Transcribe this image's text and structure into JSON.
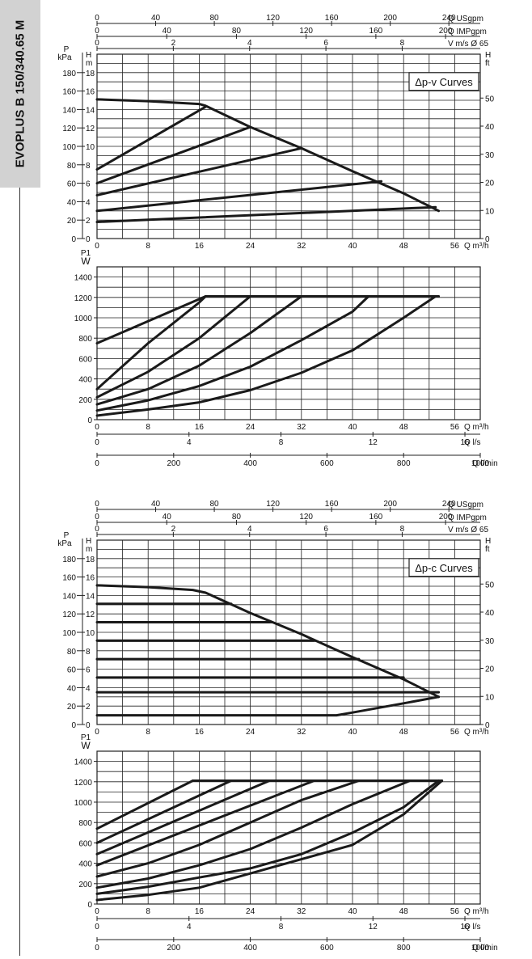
{
  "side_title": "EVOPLUS B 150/340.65 M",
  "colors": {
    "grid": "#222222",
    "curve": "#1a1a1a",
    "side_tab": "#d2d2d2"
  },
  "chart_data": [
    {
      "type": "line",
      "title": "Δp-v Curves",
      "x": {
        "label": "Q m³/h",
        "range": [
          0,
          60
        ],
        "ticks": [
          0,
          8,
          16,
          24,
          32,
          40,
          48,
          56
        ]
      },
      "y": {
        "label": "H m",
        "range": [
          0,
          20
        ],
        "ticks": [
          0,
          2,
          4,
          6,
          8,
          10,
          12,
          14,
          16,
          18
        ]
      },
      "y_secondary": [
        {
          "label": "P kPa",
          "ticks": [
            0,
            20,
            40,
            60,
            80,
            100,
            120,
            140,
            160,
            180
          ]
        },
        {
          "label": "H ft",
          "ticks": [
            0,
            10,
            20,
            30,
            40,
            50
          ]
        }
      ],
      "x_secondary": [
        {
          "label": "Q USgpm",
          "ticks": [
            0,
            40,
            80,
            120,
            160,
            200,
            240
          ]
        },
        {
          "label": "Q IMPgpm",
          "ticks": [
            0,
            40,
            80,
            120,
            160,
            200
          ]
        },
        {
          "label": "V m/s Ø 65",
          "ticks": [
            0,
            2,
            4,
            6,
            8
          ]
        }
      ],
      "series": [
        {
          "values": [
            [
              0,
              15.1
            ],
            [
              8,
              14.9
            ],
            [
              16,
              14.6
            ],
            [
              17,
              14.4
            ],
            [
              24,
              12.1
            ],
            [
              32,
              9.8
            ],
            [
              40,
              7.3
            ],
            [
              48,
              4.9
            ],
            [
              53.5,
              3.0
            ]
          ]
        },
        {
          "values": [
            [
              0,
              7.5
            ],
            [
              17,
              14.3
            ]
          ]
        },
        {
          "values": [
            [
              0,
              6.0
            ],
            [
              24,
              12.1
            ]
          ]
        },
        {
          "values": [
            [
              0,
              4.7
            ],
            [
              32,
              9.8
            ]
          ]
        },
        {
          "values": [
            [
              0,
              3.0
            ],
            [
              44.5,
              6.2
            ]
          ]
        },
        {
          "values": [
            [
              0,
              1.8
            ],
            [
              53,
              3.4
            ]
          ]
        }
      ]
    },
    {
      "type": "line",
      "x": {
        "label": "Q m³/h",
        "range": [
          0,
          60
        ],
        "ticks": [
          0,
          8,
          16,
          24,
          32,
          40,
          48,
          56
        ]
      },
      "y": {
        "label": "P1 W",
        "range": [
          0,
          1500
        ],
        "ticks": [
          0,
          200,
          400,
          600,
          800,
          1000,
          1200,
          1400
        ]
      },
      "x_secondary": [
        {
          "label": "Q l/s",
          "ticks": [
            0,
            4,
            8,
            12,
            16
          ]
        },
        {
          "label": "Q l/min",
          "ticks": [
            0,
            200,
            400,
            600,
            800,
            1000
          ]
        }
      ],
      "series": [
        {
          "values": [
            [
              17,
              1210
            ],
            [
              53.5,
              1210
            ]
          ]
        },
        {
          "values": [
            [
              0,
              750
            ],
            [
              17,
              1210
            ]
          ]
        },
        {
          "values": [
            [
              0,
              300
            ],
            [
              8,
              750
            ],
            [
              16,
              1150
            ],
            [
              17,
              1210
            ]
          ]
        },
        {
          "values": [
            [
              0,
              220
            ],
            [
              8,
              470
            ],
            [
              16,
              800
            ],
            [
              24,
              1210
            ]
          ]
        },
        {
          "values": [
            [
              0,
              150
            ],
            [
              8,
              300
            ],
            [
              16,
              530
            ],
            [
              24,
              850
            ],
            [
              32,
              1210
            ]
          ]
        },
        {
          "values": [
            [
              0,
              90
            ],
            [
              8,
              190
            ],
            [
              16,
              330
            ],
            [
              24,
              520
            ],
            [
              32,
              780
            ],
            [
              40,
              1060
            ],
            [
              42.5,
              1210
            ]
          ]
        },
        {
          "values": [
            [
              0,
              40
            ],
            [
              8,
              100
            ],
            [
              16,
              170
            ],
            [
              24,
              290
            ],
            [
              32,
              460
            ],
            [
              40,
              680
            ],
            [
              48,
              1000
            ],
            [
              53,
              1210
            ]
          ]
        }
      ]
    },
    {
      "type": "line",
      "title": "Δp-c Curves",
      "x": {
        "label": "Q m³/h",
        "range": [
          0,
          60
        ],
        "ticks": [
          0,
          8,
          16,
          24,
          32,
          40,
          48,
          56
        ]
      },
      "y": {
        "label": "H m",
        "range": [
          0,
          20
        ],
        "ticks": [
          0,
          2,
          4,
          6,
          8,
          10,
          12,
          14,
          16,
          18
        ]
      },
      "y_secondary": [
        {
          "label": "P kPa",
          "ticks": [
            0,
            20,
            40,
            60,
            80,
            100,
            120,
            140,
            160,
            180
          ]
        },
        {
          "label": "H ft",
          "ticks": [
            0,
            10,
            20,
            30,
            40,
            50
          ]
        }
      ],
      "x_secondary": [
        {
          "label": "Q USgpm",
          "ticks": [
            0,
            40,
            80,
            120,
            160,
            200,
            240
          ]
        },
        {
          "label": "Q IMPgpm",
          "ticks": [
            0,
            40,
            80,
            120,
            160,
            200
          ]
        },
        {
          "label": "V m/s Ø 65",
          "ticks": [
            0,
            2,
            4,
            6,
            8
          ]
        }
      ],
      "series": [
        {
          "values": [
            [
              0,
              15.1
            ],
            [
              8,
              14.9
            ],
            [
              15,
              14.6
            ],
            [
              17,
              14.3
            ],
            [
              24,
              12.1
            ],
            [
              32,
              9.8
            ],
            [
              40,
              7.3
            ],
            [
              48,
              4.9
            ],
            [
              53.5,
              3.0
            ]
          ]
        },
        {
          "values": [
            [
              0,
              13.1
            ],
            [
              21,
              13.1
            ]
          ]
        },
        {
          "values": [
            [
              0,
              11.1
            ],
            [
              27,
              11.1
            ]
          ]
        },
        {
          "values": [
            [
              0,
              9.1
            ],
            [
              34,
              9.1
            ]
          ]
        },
        {
          "values": [
            [
              0,
              7.1
            ],
            [
              41,
              7.1
            ]
          ]
        },
        {
          "values": [
            [
              0,
              5.1
            ],
            [
              48,
              5.1
            ]
          ]
        },
        {
          "values": [
            [
              0,
              3.5
            ],
            [
              53.5,
              3.5
            ]
          ]
        },
        {
          "values": [
            [
              0,
              1.0
            ],
            [
              37.5,
              1.0
            ],
            [
              40,
              1.3
            ],
            [
              48,
              2.3
            ],
            [
              53.5,
              3.0
            ]
          ]
        }
      ]
    },
    {
      "type": "line",
      "x": {
        "label": "Q m³/h",
        "range": [
          0,
          60
        ],
        "ticks": [
          0,
          8,
          16,
          24,
          32,
          40,
          48,
          56
        ]
      },
      "y": {
        "label": "P1 W",
        "range": [
          0,
          1500
        ],
        "ticks": [
          0,
          200,
          400,
          600,
          800,
          1000,
          1200,
          1400
        ]
      },
      "x_secondary": [
        {
          "label": "Q l/s",
          "ticks": [
            0,
            4,
            8,
            12,
            16
          ]
        },
        {
          "label": "Q l/min",
          "ticks": [
            0,
            200,
            400,
            600,
            800,
            1000
          ]
        }
      ],
      "series": [
        {
          "values": [
            [
              15,
              1210
            ],
            [
              54,
              1210
            ]
          ]
        },
        {
          "values": [
            [
              0,
              740
            ],
            [
              15,
              1210
            ]
          ]
        },
        {
          "values": [
            [
              0,
              600
            ],
            [
              21,
              1210
            ]
          ]
        },
        {
          "values": [
            [
              0,
              490
            ],
            [
              27,
              1210
            ]
          ]
        },
        {
          "values": [
            [
              0,
              380
            ],
            [
              34,
              1210
            ]
          ]
        },
        {
          "values": [
            [
              0,
              270
            ],
            [
              8,
              400
            ],
            [
              16,
              580
            ],
            [
              24,
              800
            ],
            [
              32,
              1020
            ],
            [
              41,
              1210
            ]
          ]
        },
        {
          "values": [
            [
              0,
              160
            ],
            [
              8,
              250
            ],
            [
              16,
              380
            ],
            [
              24,
              540
            ],
            [
              32,
              750
            ],
            [
              40,
              980
            ],
            [
              49,
              1210
            ]
          ]
        },
        {
          "values": [
            [
              0,
              100
            ],
            [
              8,
              170
            ],
            [
              16,
              260
            ],
            [
              24,
              350
            ],
            [
              32,
              490
            ],
            [
              40,
              700
            ],
            [
              48,
              950
            ],
            [
              53.5,
              1210
            ]
          ]
        },
        {
          "values": [
            [
              0,
              40
            ],
            [
              8,
              90
            ],
            [
              16,
              160
            ],
            [
              24,
              300
            ],
            [
              32,
              440
            ],
            [
              40,
              580
            ],
            [
              48,
              880
            ],
            [
              54,
              1210
            ]
          ]
        }
      ]
    }
  ]
}
